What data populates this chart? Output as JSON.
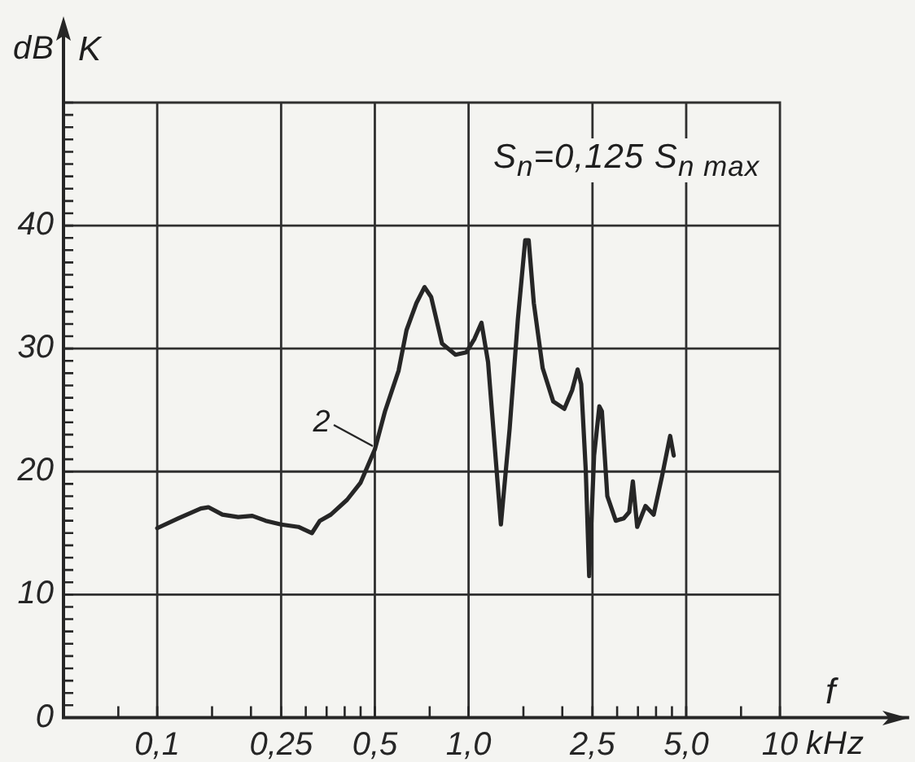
{
  "chart_data": {
    "type": "line",
    "log": "x",
    "grid": true,
    "xlabel": "f",
    "ylabel": "K",
    "annotations": [
      {
        "text": "2",
        "x": 0.5,
        "y": 22
      },
      "S$_{n}$=0,125 S$_{n max}$",
      "dB",
      "kHz"
    ],
    "xlim": [
      0.05,
      26
    ],
    "ylim": [
      0,
      50
    ],
    "xticks": [
      {
        "value": 0.075,
        "label": null
      },
      {
        "value": 0.1,
        "label": "0,1"
      },
      {
        "value": 0.15,
        "label": null
      },
      {
        "value": 0.2,
        "label": null
      },
      {
        "value": 0.25,
        "label": "0,25"
      },
      {
        "value": 0.3,
        "label": null
      },
      {
        "value": 0.35,
        "label": null
      },
      {
        "value": 0.4,
        "label": null
      },
      {
        "value": 0.45,
        "label": null
      },
      {
        "value": 0.5,
        "label": "0,5"
      },
      {
        "value": 0.75,
        "label": null
      },
      {
        "value": 1,
        "label": "1,0"
      },
      {
        "value": 1.5,
        "label": null
      },
      {
        "value": 2,
        "label": null
      },
      {
        "value": 2.5,
        "label": "2,5"
      },
      {
        "value": 3,
        "label": null
      },
      {
        "value": 3.5,
        "label": null
      },
      {
        "value": 4,
        "label": null
      },
      {
        "value": 4.5,
        "label": null
      },
      {
        "value": 5,
        "label": "5,0"
      },
      {
        "value": 7.5,
        "label": null
      },
      10
    ],
    "yticks": [
      0,
      {
        "value": 1,
        "label": null
      },
      {
        "value": 2,
        "label": null
      },
      {
        "value": 3,
        "label": null
      },
      {
        "value": 4,
        "label": null
      },
      {
        "value": 5,
        "label": null
      },
      {
        "value": 6,
        "label": null
      },
      {
        "value": 7,
        "label": null
      },
      {
        "value": 8,
        "label": null
      },
      {
        "value": 9,
        "label": null
      },
      10,
      {
        "value": 11,
        "label": null
      },
      {
        "value": 12,
        "label": null
      },
      {
        "value": 13,
        "label": null
      },
      {
        "value": 14,
        "label": null
      },
      {
        "value": 15,
        "label": null
      },
      {
        "value": 16,
        "label": null
      },
      {
        "value": 17,
        "label": null
      },
      {
        "value": 18,
        "label": null
      },
      {
        "value": 19,
        "label": null
      },
      20,
      {
        "value": 21,
        "label": null
      },
      {
        "value": 22,
        "label": null
      },
      {
        "value": 23,
        "label": null
      },
      {
        "value": 24,
        "label": null
      },
      {
        "value": 25,
        "label": null
      },
      {
        "value": 26,
        "label": null
      },
      {
        "value": 27,
        "label": null
      },
      {
        "value": 28,
        "label": null
      },
      {
        "value": 29,
        "label": null
      },
      30,
      {
        "value": 31,
        "label": null
      },
      {
        "value": 32,
        "label": null
      },
      {
        "value": 33,
        "label": null
      },
      {
        "value": 34,
        "label": null
      },
      {
        "value": 35,
        "label": null
      },
      {
        "value": 36,
        "label": null
      },
      {
        "value": 37,
        "label": null
      },
      {
        "value": 38,
        "label": null
      },
      {
        "value": 39,
        "label": null
      },
      40,
      {
        "value": 41,
        "label": null
      },
      {
        "value": 42,
        "label": null
      },
      {
        "value": 43,
        "label": null
      },
      {
        "value": 44,
        "label": null
      },
      {
        "value": 45,
        "label": null
      },
      {
        "value": 46,
        "label": null
      },
      {
        "value": 47,
        "label": null
      },
      {
        "value": 48,
        "label": null
      },
      {
        "value": 49,
        "label": null
      },
      {
        "value": 50,
        "label": null
      }
    ],
    "x": [
      0.1,
      0.117,
      0.138,
      0.146,
      0.162,
      0.182,
      0.202,
      0.223,
      0.25,
      0.284,
      0.314,
      0.333,
      0.361,
      0.407,
      0.45,
      0.5,
      0.539,
      0.596,
      0.632,
      0.68,
      0.722,
      0.758,
      0.822,
      0.908,
      0.984,
      1.045,
      1.1,
      1.155,
      1.27,
      1.355,
      1.44,
      1.52,
      1.56,
      1.62,
      1.73,
      1.87,
      2.03,
      2.15,
      2.24,
      2.3,
      2.38,
      2.44,
      2.53,
      2.63,
      2.68,
      2.79,
      2.97,
      3.15,
      3.28,
      3.37,
      3.48,
      3.7,
      3.93,
      4.18,
      4.44,
      4.56
    ],
    "values": [
      15.4,
      16.2,
      17.0,
      17.1,
      16.5,
      16.3,
      16.4,
      16.0,
      15.7,
      15.5,
      15.0,
      16.0,
      16.5,
      17.7,
      19.1,
      21.8,
      24.9,
      28.2,
      31.5,
      33.7,
      35.0,
      34.2,
      30.4,
      29.5,
      29.7,
      30.8,
      32.1,
      28.9,
      15.7,
      23.5,
      32.4,
      38.8,
      38.8,
      33.7,
      28.4,
      25.7,
      25.1,
      26.6,
      28.3,
      27.1,
      20.0,
      11.5,
      21.3,
      25.3,
      24.9,
      18.0,
      16.0,
      16.2,
      16.7,
      19.2,
      15.5,
      17.2,
      16.5,
      19.6,
      22.9,
      21.3
    ],
    "color": "#262626"
  }
}
